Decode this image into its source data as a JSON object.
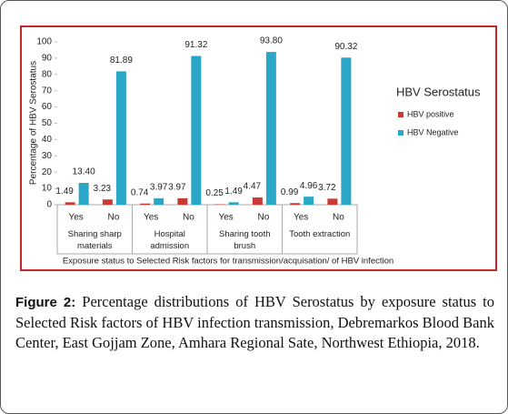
{
  "chart_data": {
    "type": "bar",
    "ylabel": "Percentage of HBV Serostatus",
    "xlabel": "Exposure status to Selected Risk factors for transmission/acquisation/ of HBV infection",
    "categories": [
      "Yes",
      "No",
      "Yes",
      "No",
      "Yes",
      "No",
      "Yes",
      "No"
    ],
    "groups": [
      "Sharing sharp materials",
      "Hospital admission",
      "Sharing tooth brush",
      "Tooth extraction"
    ],
    "series": [
      {
        "name": "HBV positive",
        "color": "#c83a32",
        "values": [
          1.49,
          3.23,
          0.74,
          3.97,
          0.25,
          4.47,
          0.99,
          3.72
        ],
        "value_labels": [
          "1.49",
          "3.23",
          "0.74",
          "3.97",
          "0.25",
          "4.47",
          "0.99",
          "3.72"
        ]
      },
      {
        "name": "HBV Negative",
        "color": "#2aa6c6",
        "values": [
          13.4,
          81.89,
          3.97,
          91.32,
          1.49,
          93.8,
          4.96,
          90.32
        ],
        "value_labels": [
          "13.40",
          "81.89",
          "3.97",
          "91.32",
          "1.49",
          "93.80",
          "4.96",
          "90.32"
        ]
      }
    ],
    "legend_title": "HBV Serostatus",
    "legend": "right",
    "ylim": [
      0,
      100
    ],
    "yticks": [
      0,
      10,
      20,
      30,
      40,
      50,
      60,
      70,
      80,
      90,
      100
    ],
    "grid": false
  },
  "caption": {
    "label": "Figure 2:",
    "text": "Percentage distributions of HBV Serostatus by exposure status to Selected Risk factors of HBV infection transmission, Debremarkos Blood Bank Center, East Gojjam Zone, Amhara Regional Sate, Northwest Ethiopia, 2018."
  }
}
